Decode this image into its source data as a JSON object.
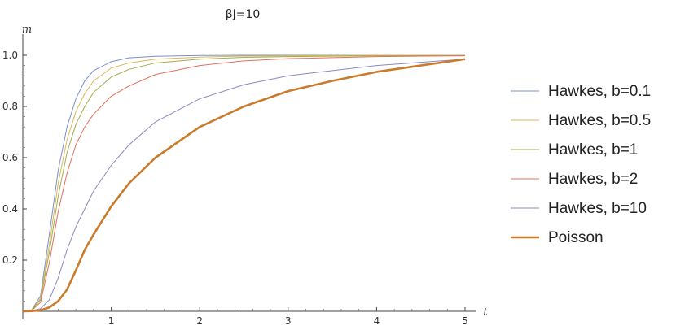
{
  "chart_data": {
    "type": "line",
    "title": "βJ=10",
    "xlabel": "t",
    "ylabel": "m",
    "xlim": [
      0,
      5
    ],
    "ylim": [
      0,
      1.0
    ],
    "x_ticks": [
      1,
      2,
      3,
      4,
      5
    ],
    "y_ticks": [
      0.2,
      0.4,
      0.6,
      0.8,
      1.0
    ],
    "grid": false,
    "legend_position": "right",
    "series": [
      {
        "name": "Hawkes, b=0.1",
        "color": "#7b8fcf",
        "width": 1,
        "x": [
          0,
          0.1,
          0.2,
          0.3,
          0.4,
          0.5,
          0.6,
          0.7,
          0.8,
          1,
          1.2,
          1.5,
          2,
          2.5,
          3,
          4,
          5
        ],
        "y": [
          0,
          0.005,
          0.06,
          0.3,
          0.55,
          0.72,
          0.83,
          0.9,
          0.94,
          0.975,
          0.99,
          0.996,
          0.999,
          1.0,
          1.0,
          1.0,
          1.0
        ]
      },
      {
        "name": "Hawkes, b=0.5",
        "color": "#d9b85a",
        "width": 1,
        "x": [
          0,
          0.1,
          0.2,
          0.3,
          0.4,
          0.5,
          0.6,
          0.7,
          0.8,
          1,
          1.2,
          1.5,
          2,
          2.5,
          3,
          4,
          5
        ],
        "y": [
          0,
          0.005,
          0.05,
          0.26,
          0.5,
          0.67,
          0.78,
          0.85,
          0.9,
          0.95,
          0.97,
          0.985,
          0.993,
          0.997,
          0.998,
          1.0,
          1.0
        ]
      },
      {
        "name": "Hawkes, b=1",
        "color": "#a3ad4a",
        "width": 1,
        "x": [
          0,
          0.1,
          0.2,
          0.3,
          0.4,
          0.5,
          0.6,
          0.7,
          0.8,
          1,
          1.2,
          1.5,
          2,
          2.5,
          3,
          4,
          5
        ],
        "y": [
          0,
          0.004,
          0.045,
          0.23,
          0.45,
          0.62,
          0.73,
          0.8,
          0.855,
          0.915,
          0.945,
          0.97,
          0.985,
          0.992,
          0.995,
          0.998,
          0.999
        ]
      },
      {
        "name": "Hawkes, b=2",
        "color": "#e2705e",
        "width": 1,
        "x": [
          0,
          0.1,
          0.2,
          0.3,
          0.4,
          0.5,
          0.6,
          0.7,
          0.8,
          1,
          1.2,
          1.5,
          2,
          2.5,
          3,
          4,
          5
        ],
        "y": [
          0,
          0.003,
          0.035,
          0.19,
          0.39,
          0.54,
          0.65,
          0.72,
          0.77,
          0.84,
          0.88,
          0.925,
          0.96,
          0.978,
          0.987,
          0.995,
          0.998
        ]
      },
      {
        "name": "Hawkes, b=10",
        "color": "#8a88c4",
        "width": 1,
        "x": [
          0,
          0.1,
          0.2,
          0.3,
          0.4,
          0.5,
          0.6,
          0.7,
          0.8,
          1,
          1.2,
          1.5,
          2,
          2.5,
          3,
          4,
          5
        ],
        "y": [
          0,
          0.002,
          0.01,
          0.045,
          0.13,
          0.24,
          0.33,
          0.4,
          0.47,
          0.57,
          0.65,
          0.74,
          0.83,
          0.885,
          0.92,
          0.96,
          0.985
        ]
      },
      {
        "name": "Poisson",
        "color": "#c97b2b",
        "width": 2.6,
        "x": [
          0,
          0.1,
          0.2,
          0.3,
          0.4,
          0.5,
          0.6,
          0.7,
          0.8,
          1,
          1.2,
          1.5,
          2,
          2.5,
          3,
          3.5,
          4,
          5
        ],
        "y": [
          0,
          0.001,
          0.004,
          0.015,
          0.04,
          0.085,
          0.16,
          0.24,
          0.3,
          0.41,
          0.5,
          0.6,
          0.72,
          0.8,
          0.86,
          0.9,
          0.935,
          0.985
        ]
      }
    ]
  }
}
